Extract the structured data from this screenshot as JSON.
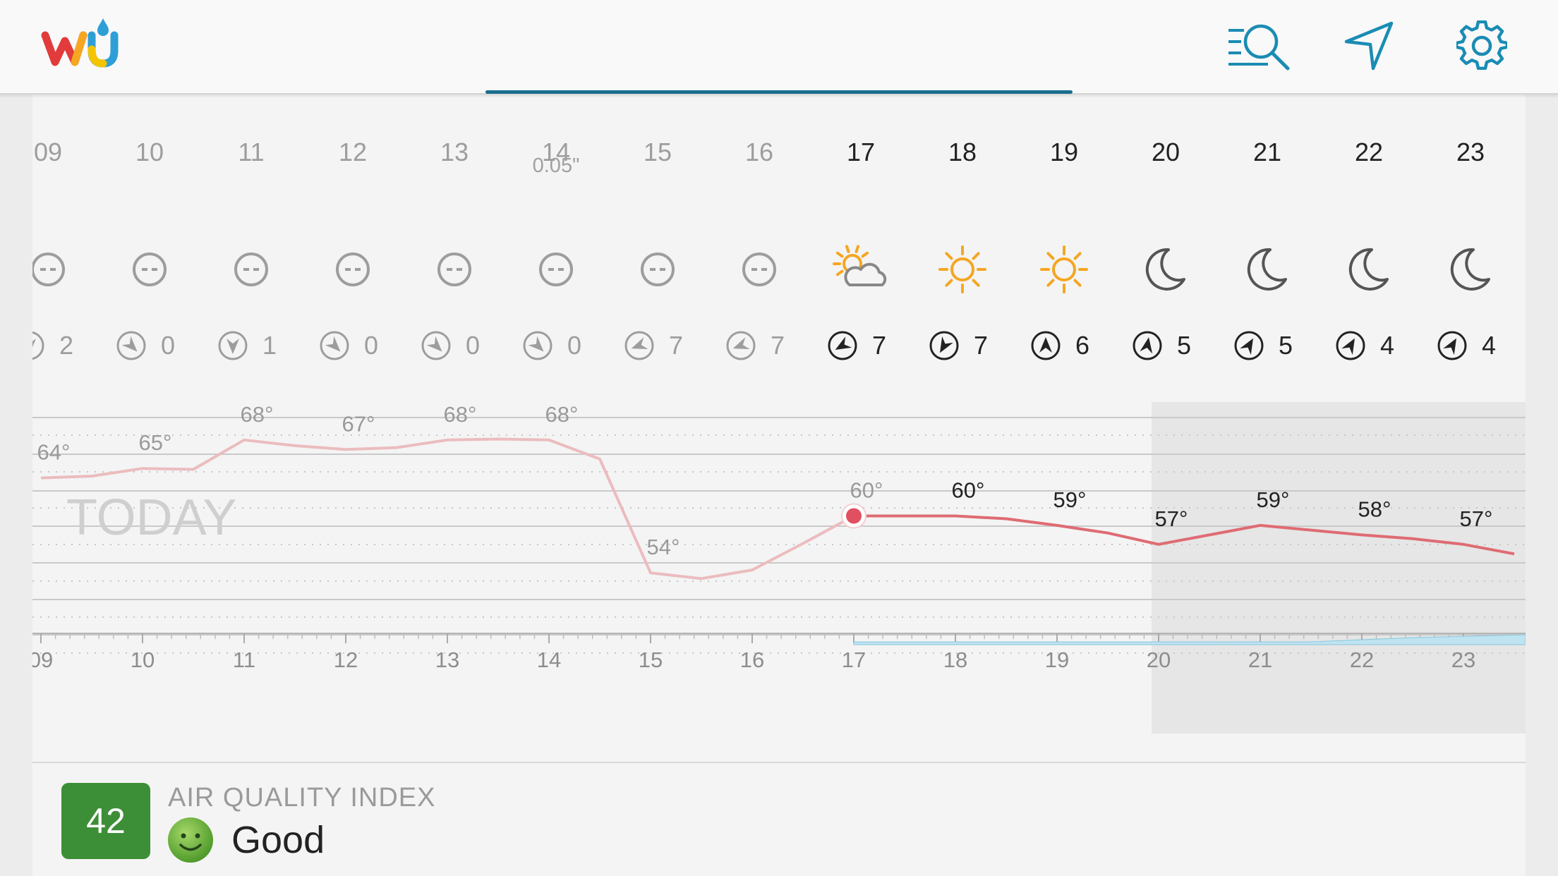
{
  "app": {
    "name": "Weather Underground",
    "logo_text": "wu"
  },
  "toolbar": {
    "search_icon": "search-list-icon",
    "locate_icon": "navigation-arrow-icon",
    "settings_icon": "gear-icon"
  },
  "forecast": {
    "precip_label": "0.05\"",
    "today_label": "TODAY",
    "hours": [
      {
        "hour": "09",
        "icon": "cloudy-icon",
        "wind_speed": "2",
        "wind_dir_deg": 90,
        "temp": 64,
        "temp_label": "64°",
        "past": true
      },
      {
        "hour": "10",
        "icon": "cloudy-icon",
        "wind_speed": "0",
        "wind_dir_deg": 45,
        "temp": 65,
        "temp_label": "65°",
        "past": true
      },
      {
        "hour": "11",
        "icon": "cloudy-icon",
        "wind_speed": "1",
        "wind_dir_deg": 90,
        "temp": 68,
        "temp_label": "68°",
        "past": true
      },
      {
        "hour": "12",
        "icon": "cloudy-icon",
        "wind_speed": "0",
        "wind_dir_deg": 45,
        "temp": 67,
        "temp_label": "67°",
        "past": true
      },
      {
        "hour": "13",
        "icon": "cloudy-icon",
        "wind_speed": "0",
        "wind_dir_deg": 45,
        "temp": 68,
        "temp_label": "68°",
        "past": true
      },
      {
        "hour": "14",
        "icon": "cloudy-icon",
        "wind_speed": "0",
        "wind_dir_deg": 45,
        "temp": 68,
        "temp_label": "68°",
        "past": true
      },
      {
        "hour": "15",
        "icon": "cloudy-icon",
        "wind_speed": "7",
        "wind_dir_deg": 160,
        "temp": 54,
        "temp_label": "54°",
        "past": true
      },
      {
        "hour": "16",
        "icon": "cloudy-icon",
        "wind_speed": "7",
        "wind_dir_deg": 160,
        "temp": null,
        "temp_label": "",
        "past": true
      },
      {
        "hour": "17",
        "icon": "partly-cloudy-icon",
        "wind_speed": "7",
        "wind_dir_deg": 150,
        "temp": 60,
        "temp_label": "60°",
        "past": false
      },
      {
        "hour": "18",
        "icon": "sun-icon",
        "wind_speed": "7",
        "wind_dir_deg": 120,
        "temp": 60,
        "temp_label": "60°",
        "past": false
      },
      {
        "hour": "19",
        "icon": "sun-icon",
        "wind_speed": "6",
        "wind_dir_deg": 270,
        "temp": 59,
        "temp_label": "59°",
        "past": false
      },
      {
        "hour": "20",
        "icon": "moon-icon",
        "wind_speed": "5",
        "wind_dir_deg": 280,
        "temp": 57,
        "temp_label": "57°",
        "past": false
      },
      {
        "hour": "21",
        "icon": "moon-icon",
        "wind_speed": "5",
        "wind_dir_deg": 300,
        "temp": 59,
        "temp_label": "59°",
        "past": false
      },
      {
        "hour": "22",
        "icon": "moon-icon",
        "wind_speed": "4",
        "wind_dir_deg": 300,
        "temp": 58,
        "temp_label": "58°",
        "past": false
      },
      {
        "hour": "23",
        "icon": "moon-icon",
        "wind_speed": "4",
        "wind_dir_deg": 300,
        "temp": 57,
        "temp_label": "57°",
        "past": false
      }
    ],
    "axis_labels": [
      "09",
      "10",
      "11",
      "12",
      "13",
      "14",
      "15",
      "16",
      "17",
      "18",
      "19",
      "20",
      "21",
      "22",
      "23"
    ]
  },
  "chart_data": {
    "type": "line",
    "x": [
      9,
      9.5,
      10,
      10.5,
      11,
      11.5,
      12,
      12.5,
      13,
      13.5,
      14,
      14.5,
      15,
      15.5,
      16,
      16.5,
      17,
      17.5,
      18,
      18.5,
      19,
      19.5,
      20,
      20.5,
      21,
      21.5,
      22,
      22.5,
      23,
      23.5
    ],
    "series": [
      {
        "name": "",
        "values": [
          64,
          64.2,
          65,
          64.9,
          68,
          67.4,
          67,
          67.2,
          68,
          68.1,
          68,
          66,
          54,
          53.4,
          54.3,
          57.1,
          60,
          60,
          60,
          59.7,
          59,
          58.2,
          57,
          58,
          59,
          58.5,
          58,
          57.6,
          57,
          56
        ]
      }
    ],
    "current_hour": 17,
    "night_from_hour": 20,
    "ylim": [
      50,
      72
    ],
    "colors": {
      "past": "#ebbcbe",
      "future": "#df6b73",
      "marker": "#e05060"
    }
  },
  "aqi": {
    "title": "AIR QUALITY INDEX",
    "value": "42",
    "status": "Good",
    "color": "#3d8f37"
  }
}
